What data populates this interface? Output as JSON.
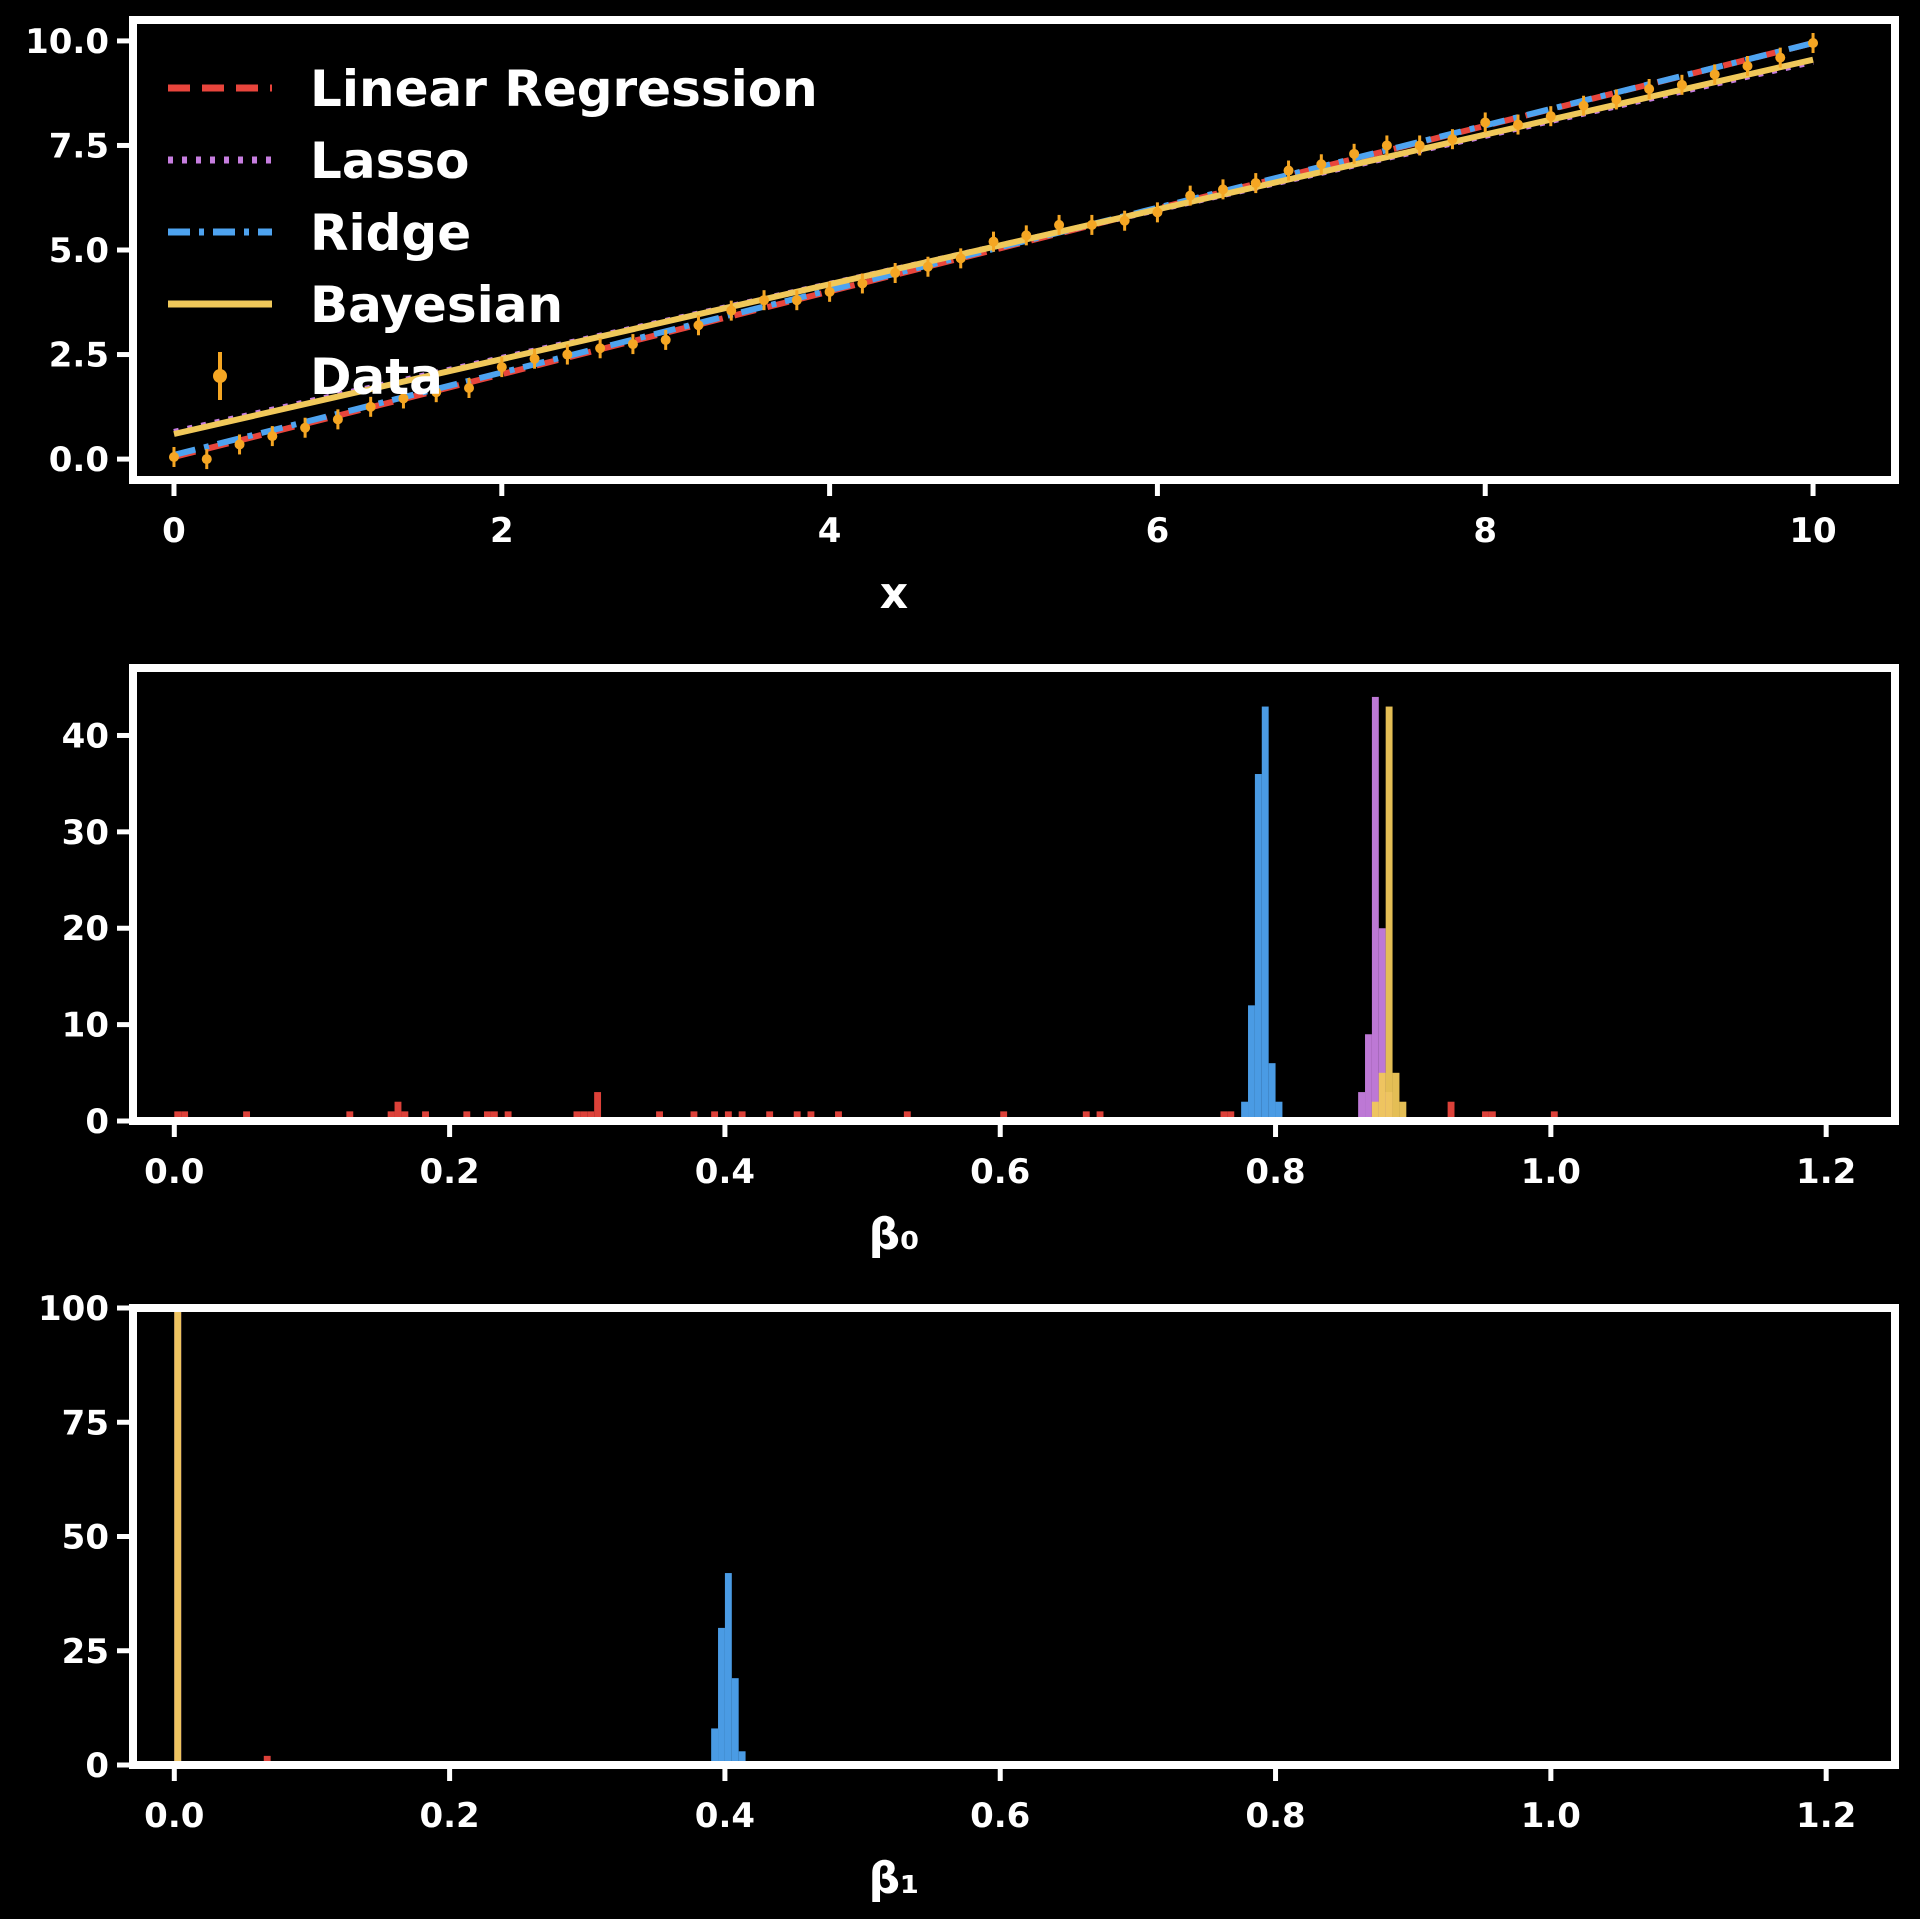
{
  "chart_data": [
    {
      "type": "line",
      "xlabel": "x",
      "ylabel": "",
      "xlim": [
        -0.25,
        10.5
      ],
      "ylim": [
        -0.5,
        10.5
      ],
      "xticks": [
        "0",
        "2",
        "4",
        "6",
        "8",
        "10"
      ],
      "yticks": [
        "0.0",
        "2.5",
        "5.0",
        "7.5",
        "10.0"
      ],
      "xtick_values": [
        0,
        2,
        4,
        6,
        8,
        10
      ],
      "ytick_values": [
        0,
        2.5,
        5,
        7.5,
        10
      ],
      "grid": false,
      "legend_position": "top-left",
      "legend": [
        "Linear Regression",
        "Lasso",
        "Ridge",
        "Bayesian",
        "Data"
      ],
      "series": [
        {
          "name": "Linear Regression",
          "style": "dashed",
          "color": "#e8453c",
          "x": [
            0,
            10
          ],
          "y": [
            0.05,
            9.95
          ]
        },
        {
          "name": "Lasso",
          "style": "dotted",
          "color": "#c77ee0",
          "x": [
            0,
            10
          ],
          "y": [
            0.65,
            9.5
          ]
        },
        {
          "name": "Ridge",
          "style": "dashdot",
          "color": "#4ea3f0",
          "x": [
            0,
            10
          ],
          "y": [
            0.1,
            9.95
          ]
        },
        {
          "name": "Bayesian",
          "style": "solid",
          "color": "#f0c85a",
          "x": [
            0,
            10
          ],
          "y": [
            0.6,
            9.55
          ]
        },
        {
          "name": "Data",
          "style": "errorbar",
          "color": "#f5a623",
          "x": [
            0,
            0.2,
            0.4,
            0.6,
            0.8,
            1.0,
            1.2,
            1.4,
            1.6,
            1.8,
            2.0,
            2.2,
            2.4,
            2.6,
            2.8,
            3.0,
            3.2,
            3.4,
            3.6,
            3.8,
            4.0,
            4.2,
            4.4,
            4.6,
            4.8,
            5.0,
            5.2,
            5.4,
            5.6,
            5.8,
            6.0,
            6.2,
            6.4,
            6.6,
            6.8,
            7.0,
            7.2,
            7.4,
            7.6,
            7.8,
            8.0,
            8.2,
            8.4,
            8.6,
            8.8,
            9.0,
            9.2,
            9.4,
            9.6,
            9.8,
            10.0
          ],
          "y": [
            0.05,
            0.0,
            0.35,
            0.55,
            0.75,
            0.95,
            1.25,
            1.45,
            1.6,
            1.7,
            2.2,
            2.4,
            2.5,
            2.65,
            2.75,
            2.85,
            3.2,
            3.55,
            3.8,
            3.8,
            4.0,
            4.2,
            4.45,
            4.6,
            4.8,
            5.2,
            5.35,
            5.6,
            5.6,
            5.7,
            5.9,
            6.3,
            6.45,
            6.6,
            6.9,
            7.05,
            7.3,
            7.5,
            7.5,
            7.65,
            8.05,
            8.0,
            8.2,
            8.45,
            8.6,
            8.85,
            8.95,
            9.2,
            9.4,
            9.6,
            9.95
          ]
        }
      ]
    },
    {
      "type": "histogram",
      "xlabel": "β₀",
      "ylabel": "",
      "xlim": [
        -0.03,
        1.25
      ],
      "ylim": [
        0,
        47
      ],
      "xticks": [
        "0.0",
        "0.2",
        "0.4",
        "0.6",
        "0.8",
        "1.0",
        "1.2"
      ],
      "yticks": [
        "0",
        "10",
        "20",
        "30",
        "40"
      ],
      "xtick_values": [
        0,
        0.2,
        0.4,
        0.6,
        0.8,
        1.0,
        1.2
      ],
      "ytick_values": [
        0,
        10,
        20,
        30,
        40
      ],
      "bin_width": 0.005,
      "series": [
        {
          "name": "Linear Regression",
          "color": "#e8453c",
          "bins": [
            [
              0.0,
              1
            ],
            [
              0.005,
              1
            ],
            [
              0.05,
              1
            ],
            [
              0.125,
              1
            ],
            [
              0.155,
              1
            ],
            [
              0.16,
              2
            ],
            [
              0.165,
              1
            ],
            [
              0.18,
              1
            ],
            [
              0.21,
              1
            ],
            [
              0.225,
              1
            ],
            [
              0.23,
              1
            ],
            [
              0.24,
              1
            ],
            [
              0.29,
              1
            ],
            [
              0.295,
              1
            ],
            [
              0.3,
              1
            ],
            [
              0.305,
              3
            ],
            [
              0.35,
              1
            ],
            [
              0.375,
              1
            ],
            [
              0.39,
              1
            ],
            [
              0.4,
              1
            ],
            [
              0.41,
              1
            ],
            [
              0.43,
              1
            ],
            [
              0.45,
              1
            ],
            [
              0.46,
              1
            ],
            [
              0.48,
              1
            ],
            [
              0.53,
              1
            ],
            [
              0.6,
              1
            ],
            [
              0.66,
              1
            ],
            [
              0.67,
              1
            ],
            [
              0.76,
              1
            ],
            [
              0.765,
              1
            ],
            [
              0.925,
              2
            ],
            [
              0.95,
              1
            ],
            [
              0.955,
              1
            ],
            [
              1.0,
              1
            ]
          ]
        },
        {
          "name": "Lasso",
          "color": "#c77ee0",
          "bins": [
            [
              0.86,
              3
            ],
            [
              0.865,
              9
            ],
            [
              0.87,
              44
            ],
            [
              0.875,
              20
            ],
            [
              0.88,
              3
            ]
          ]
        },
        {
          "name": "Ridge",
          "color": "#4ea3f0",
          "bins": [
            [
              0.775,
              2
            ],
            [
              0.78,
              12
            ],
            [
              0.785,
              36
            ],
            [
              0.79,
              43
            ],
            [
              0.795,
              6
            ],
            [
              0.8,
              2
            ]
          ]
        },
        {
          "name": "Bayesian",
          "color": "#f0c85a",
          "bins": [
            [
              0.87,
              2
            ],
            [
              0.875,
              5
            ],
            [
              0.88,
              43
            ],
            [
              0.885,
              5
            ],
            [
              0.89,
              2
            ]
          ]
        }
      ]
    },
    {
      "type": "histogram",
      "xlabel": "β₁",
      "ylabel": "",
      "xlim": [
        -0.03,
        1.25
      ],
      "ylim": [
        0,
        100
      ],
      "xticks": [
        "0.0",
        "0.2",
        "0.4",
        "0.6",
        "0.8",
        "1.0",
        "1.2"
      ],
      "yticks": [
        "0",
        "25",
        "50",
        "75",
        "100"
      ],
      "xtick_values": [
        0,
        0.2,
        0.4,
        0.6,
        0.8,
        1.0,
        1.2
      ],
      "ytick_values": [
        0,
        25,
        50,
        75,
        100
      ],
      "bin_width": 0.005,
      "series": [
        {
          "name": "Linear Regression",
          "color": "#e8453c",
          "bins": [
            [
              0.065,
              2
            ],
            [
              0.15,
              0.5
            ],
            [
              0.155,
              0.5
            ],
            [
              0.43,
              0.5
            ],
            [
              0.46,
              0.5
            ],
            [
              0.64,
              0.5
            ],
            [
              0.665,
              0.5
            ],
            [
              0.8,
              0.5
            ],
            [
              0.91,
              0.5
            ],
            [
              1.02,
              0.5
            ],
            [
              1.07,
              0.5
            ],
            [
              1.08,
              0.5
            ],
            [
              1.15,
              0.5
            ],
            [
              1.16,
              0.5
            ]
          ]
        },
        {
          "name": "Lasso",
          "color": "#c77ee0",
          "bins": [
            [
              0.0,
              100
            ]
          ]
        },
        {
          "name": "Ridge",
          "color": "#4ea3f0",
          "bins": [
            [
              0.39,
              8
            ],
            [
              0.395,
              30
            ],
            [
              0.4,
              42
            ],
            [
              0.405,
              19
            ],
            [
              0.41,
              3
            ]
          ]
        },
        {
          "name": "Bayesian",
          "color": "#f0c85a",
          "bins": [
            [
              0.0,
              100
            ]
          ]
        }
      ]
    }
  ]
}
